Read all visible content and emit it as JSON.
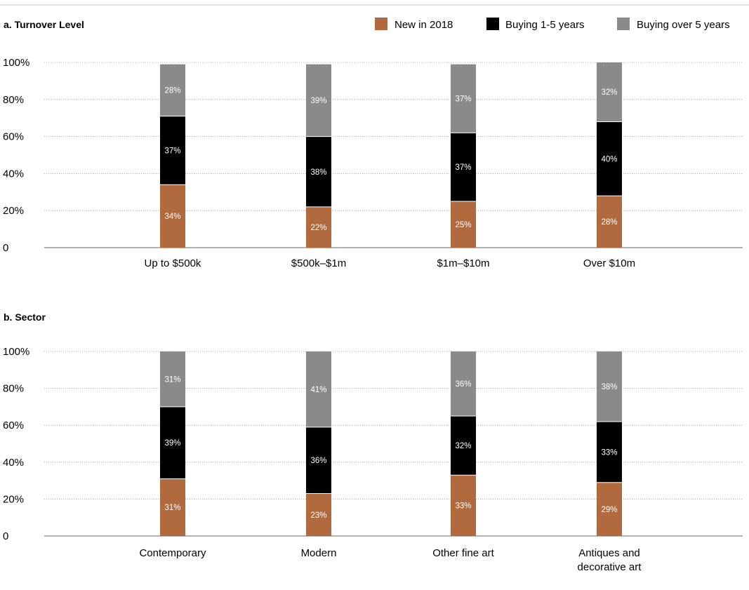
{
  "chart_data": [
    {
      "type": "bar",
      "stacked": true,
      "title": "a. Turnover Level",
      "categories": [
        "Up to $500k",
        "$500k–$1m",
        "$1m–$10m",
        "Over $10m"
      ],
      "series": [
        {
          "name": "New in 2018",
          "values": [
            34,
            22,
            25,
            28
          ]
        },
        {
          "name": "Buying 1-5 years",
          "values": [
            37,
            38,
            37,
            40
          ]
        },
        {
          "name": "Buying over 5 years",
          "values": [
            28,
            39,
            37,
            32
          ]
        }
      ],
      "ylim": [
        0,
        100
      ],
      "yticks": [
        "0",
        "20%",
        "40%",
        "60%",
        "80%",
        "100%"
      ],
      "grid": true,
      "legend": "top-right"
    },
    {
      "type": "bar",
      "stacked": true,
      "title": "b. Sector",
      "categories": [
        "Contemporary",
        "Modern",
        "Other fine art",
        "Antiques and decorative art"
      ],
      "series": [
        {
          "name": "New in 2018",
          "values": [
            31,
            23,
            33,
            29
          ]
        },
        {
          "name": "Buying 1-5 years",
          "values": [
            39,
            36,
            32,
            33
          ]
        },
        {
          "name": "Buying over 5 years",
          "values": [
            31,
            41,
            36,
            38
          ]
        }
      ],
      "ylim": [
        0,
        100
      ],
      "yticks": [
        "0",
        "20%",
        "40%",
        "60%",
        "80%",
        "100%"
      ],
      "grid": true,
      "legend": "none"
    }
  ],
  "colors": {
    "New in 2018": "#b06a3d",
    "Buying 1-5 years": "#000000",
    "Buying over 5 years": "#8a8a8a",
    "grid": "#9a9a9a",
    "axis": "#666666",
    "top_rule": "#c8c8c8"
  }
}
